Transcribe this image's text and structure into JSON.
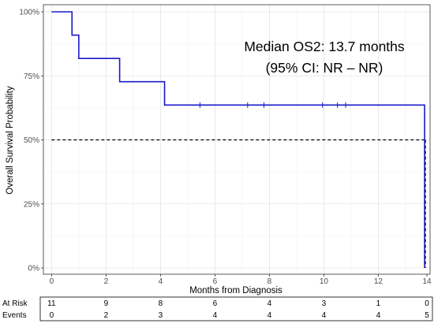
{
  "chart_data": {
    "type": "line",
    "subtype": "kaplan-meier",
    "title": "",
    "xlabel": "Months from Diagnosis",
    "ylabel": "Overall Survival Probability",
    "xlim": [
      -0.3,
      13.9
    ],
    "ylim": [
      0,
      1
    ],
    "x_ticks": [
      0,
      2,
      4,
      6,
      8,
      10,
      12,
      14
    ],
    "x_tick_labels": [
      "0",
      "2",
      "4",
      "6",
      "8",
      "10",
      "12",
      "14"
    ],
    "y_ticks": [
      0,
      0.25,
      0.5,
      0.75,
      1.0
    ],
    "y_tick_labels": [
      "0%",
      "25%",
      "50%",
      "75%",
      "100%"
    ],
    "grid": true,
    "series": [
      {
        "color": "#1a1ac8",
        "step": [
          {
            "x": 0,
            "y": 1.0
          },
          {
            "x": 0.75,
            "y": 0.909
          },
          {
            "x": 1.0,
            "y": 0.818
          },
          {
            "x": 2.5,
            "y": 0.727
          },
          {
            "x": 4.15,
            "y": 0.636
          },
          {
            "x": 13.7,
            "y": 0.0
          }
        ],
        "end_x": 13.7,
        "censor_x": [
          5.45,
          7.2,
          7.8,
          9.95,
          10.5,
          10.8
        ]
      }
    ],
    "reference_line": {
      "y": 0.5,
      "x_end": 13.7,
      "style": "dashed",
      "color": "#000000"
    },
    "annotations": [
      "Median OS2: 13.7 months",
      "(95% CI: NR – NR)"
    ],
    "risk_table": {
      "x": [
        0,
        2,
        4,
        6,
        8,
        10,
        12,
        14
      ],
      "rows": [
        {
          "label": "At Risk",
          "values": [
            "11",
            "9",
            "8",
            "6",
            "4",
            "3",
            "1",
            "0"
          ]
        },
        {
          "label": "Events",
          "values": [
            "0",
            "2",
            "3",
            "4",
            "4",
            "4",
            "4",
            "5"
          ]
        }
      ]
    }
  }
}
